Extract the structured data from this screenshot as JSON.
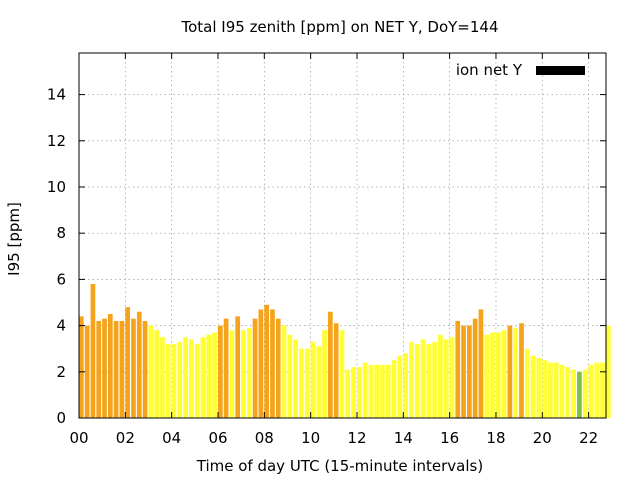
{
  "chart_data": {
    "type": "bar",
    "title": "Total I95 zenith [ppm] on NET Y, DoY=144",
    "xlabel": "Time of day UTC (15-minute intervals)",
    "ylabel": "I95 [ppm]",
    "xlim": [
      0,
      22.75
    ],
    "ylim": [
      0,
      15.8
    ],
    "x_ticks": [
      "00",
      "02",
      "04",
      "06",
      "08",
      "10",
      "12",
      "14",
      "16",
      "18",
      "20",
      "22"
    ],
    "y_ticks": [
      "0",
      "2",
      "4",
      "6",
      "8",
      "10",
      "12",
      "14"
    ],
    "grid": true,
    "legend": {
      "position": "top-right",
      "entries": [
        {
          "label": "ion net Y",
          "color": "#000000"
        }
      ]
    },
    "level_colors": {
      "yellow": "#ffff33",
      "orange": "#f5a31a",
      "green": "#7dc242"
    },
    "bar_width_hours": 0.25,
    "values": [
      4.4,
      4.0,
      5.8,
      4.2,
      4.3,
      4.5,
      4.2,
      4.2,
      4.8,
      4.3,
      4.6,
      4.2,
      4.0,
      3.8,
      3.5,
      3.2,
      3.2,
      3.3,
      3.5,
      3.4,
      3.2,
      3.5,
      3.6,
      3.7,
      4.0,
      4.3,
      3.8,
      4.4,
      3.8,
      3.9,
      4.3,
      4.7,
      4.9,
      4.7,
      4.3,
      4.0,
      3.6,
      3.4,
      3.0,
      3.0,
      3.3,
      3.1,
      3.8,
      4.6,
      4.1,
      3.8,
      2.1,
      2.2,
      2.2,
      2.4,
      2.3,
      2.3,
      2.3,
      2.3,
      2.5,
      2.7,
      2.8,
      3.3,
      3.2,
      3.4,
      3.2,
      3.3,
      3.6,
      3.4,
      3.5,
      4.2,
      4.0,
      4.0,
      4.3,
      4.7,
      3.6,
      3.7,
      3.7,
      3.8,
      4.0,
      3.9,
      4.1,
      3.0,
      2.7,
      2.6,
      2.5,
      2.4,
      2.4,
      2.3,
      2.2,
      2.1,
      2.0,
      2.1,
      2.3,
      2.4,
      2.4,
      4.0
    ],
    "colors": [
      "orange",
      "orange",
      "orange",
      "orange",
      "orange",
      "orange",
      "orange",
      "orange",
      "orange",
      "orange",
      "orange",
      "orange",
      "yellow",
      "yellow",
      "yellow",
      "yellow",
      "yellow",
      "yellow",
      "yellow",
      "yellow",
      "yellow",
      "yellow",
      "yellow",
      "yellow",
      "orange",
      "orange",
      "yellow",
      "orange",
      "yellow",
      "yellow",
      "orange",
      "orange",
      "orange",
      "orange",
      "orange",
      "yellow",
      "yellow",
      "yellow",
      "yellow",
      "yellow",
      "yellow",
      "yellow",
      "yellow",
      "orange",
      "orange",
      "yellow",
      "yellow",
      "yellow",
      "yellow",
      "yellow",
      "yellow",
      "yellow",
      "yellow",
      "yellow",
      "yellow",
      "yellow",
      "yellow",
      "yellow",
      "yellow",
      "yellow",
      "yellow",
      "yellow",
      "yellow",
      "yellow",
      "yellow",
      "orange",
      "orange",
      "orange",
      "orange",
      "orange",
      "yellow",
      "yellow",
      "yellow",
      "yellow",
      "orange",
      "yellow",
      "orange",
      "yellow",
      "yellow",
      "yellow",
      "yellow",
      "yellow",
      "yellow",
      "yellow",
      "yellow",
      "yellow",
      "green",
      "yellow",
      "yellow",
      "yellow",
      "yellow",
      "yellow"
    ]
  }
}
